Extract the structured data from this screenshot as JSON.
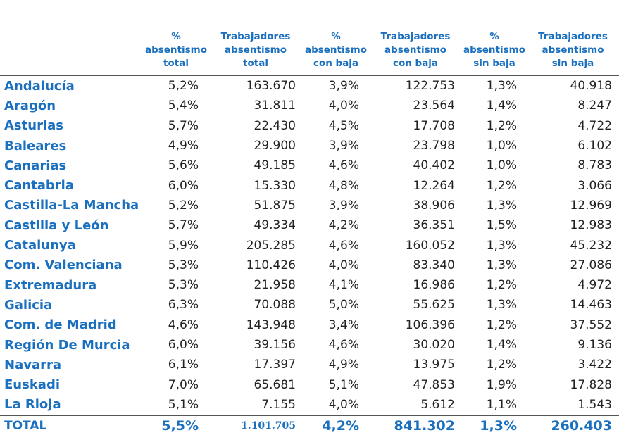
{
  "table": {
    "headers": [
      {
        "lines": [
          "",
          "",
          ""
        ]
      },
      {
        "lines": [
          "%",
          "absentismo",
          "total"
        ]
      },
      {
        "lines": [
          "Trabajadores",
          "absentismo",
          "total"
        ]
      },
      {
        "lines": [
          "%",
          "absentismo",
          "con baja"
        ]
      },
      {
        "lines": [
          "Trabajadores",
          "absentismo",
          "con baja"
        ]
      },
      {
        "lines": [
          "%",
          "absentismo",
          "sin baja"
        ]
      },
      {
        "lines": [
          "Trabajadores",
          "absentismo",
          "sin baja"
        ]
      }
    ],
    "rows": [
      [
        "Andalucía",
        "5,2%",
        "163.670",
        "3,9%",
        "122.753",
        "1,3%",
        "40.918"
      ],
      [
        "Aragón",
        "5,4%",
        "31.811",
        "4,0%",
        "23.564",
        "1,4%",
        "8.247"
      ],
      [
        "Asturias",
        "5,7%",
        "22.430",
        "4,5%",
        "17.708",
        "1,2%",
        "4.722"
      ],
      [
        "Baleares",
        "4,9%",
        "29.900",
        "3,9%",
        "23.798",
        "1,0%",
        "6.102"
      ],
      [
        "Canarias",
        "5,6%",
        "49.185",
        "4,6%",
        "40.402",
        "1,0%",
        "8.783"
      ],
      [
        "Cantabria",
        "6,0%",
        "15.330",
        "4,8%",
        "12.264",
        "1,2%",
        "3.066"
      ],
      [
        "Castilla-La Mancha",
        "5,2%",
        "51.875",
        "3,9%",
        "38.906",
        "1,3%",
        "12.969"
      ],
      [
        "Castilla y León",
        "5,7%",
        "49.334",
        "4,2%",
        "36.351",
        "1,5%",
        "12.983"
      ],
      [
        "Catalunya",
        "5,9%",
        "205.285",
        "4,6%",
        "160.052",
        "1,3%",
        "45.232"
      ],
      [
        "Com. Valenciana",
        "5,3%",
        "110.426",
        "4,0%",
        "83.340",
        "1,3%",
        "27.086"
      ],
      [
        "Extremadura",
        "5,3%",
        "21.958",
        "4,1%",
        "16.986",
        "1,2%",
        "4.972"
      ],
      [
        "Galicia",
        "6,3%",
        "70.088",
        "5,0%",
        "55.625",
        "1,3%",
        "14.463"
      ],
      [
        "Com. de Madrid",
        "4,6%",
        "143.948",
        "3,4%",
        "106.396",
        "1,2%",
        "37.552"
      ],
      [
        "Región De Murcia",
        "6,0%",
        "39.156",
        "4,6%",
        "30.020",
        "1,4%",
        "9.136"
      ],
      [
        "Navarra",
        "6,1%",
        "17.397",
        "4,9%",
        "13.975",
        "1,2%",
        "3.422"
      ],
      [
        "Euskadi",
        "7,0%",
        "65.681",
        "5,1%",
        "47.853",
        "1,9%",
        "17.828"
      ],
      [
        "La Rioja",
        "5,1%",
        "7.155",
        "4,0%",
        "5.612",
        "1,1%",
        "1.543"
      ]
    ],
    "total": [
      "TOTAL",
      "5,5%",
      "1.101.705",
      "4,2%",
      "841.302",
      "1,3%",
      "260.403"
    ]
  },
  "colors": {
    "accent": "#1a6fbf",
    "text": "#222222",
    "rule": "#555555"
  }
}
